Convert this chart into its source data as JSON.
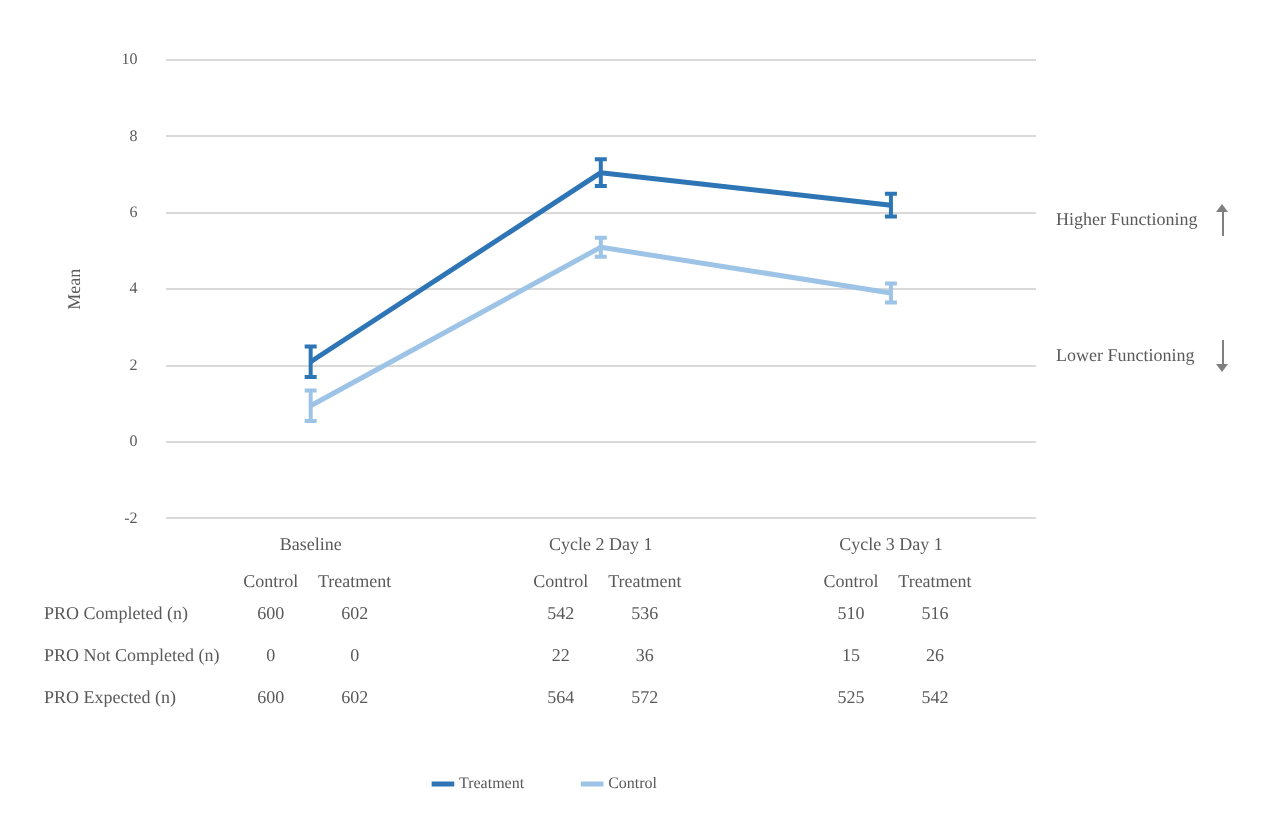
{
  "chart_data": {
    "type": "line",
    "ylabel": "Mean",
    "categories": [
      "Baseline",
      "Cycle 2 Day 1",
      "Cycle 3 Day 1"
    ],
    "series": [
      {
        "name": "Treatment",
        "color": "#2e75b6",
        "values": [
          2.1,
          7.05,
          6.2
        ],
        "errors": [
          0.4,
          0.35,
          0.3
        ]
      },
      {
        "name": "Control",
        "color": "#9dc3e6",
        "values": [
          0.95,
          5.1,
          3.9
        ],
        "errors": [
          0.4,
          0.25,
          0.25
        ]
      }
    ],
    "ylim": [
      -2,
      10
    ],
    "yticks": [
      -2,
      0,
      2,
      4,
      6,
      8,
      10
    ],
    "grid": "y",
    "legend": "bottom",
    "line_style": "solid",
    "annotations": [
      "Higher Functioning",
      "Lower Functioning",
      "Control",
      "Treatment",
      "PRO Completed (n)",
      "600",
      "602",
      "542",
      "536",
      "510",
      "516",
      "PRO Not Completed (n)",
      "0",
      "0",
      "22",
      "36",
      "15",
      "26",
      "PRO Expected (n)",
      "600",
      "602",
      "564",
      "572",
      "525",
      "542"
    ]
  }
}
